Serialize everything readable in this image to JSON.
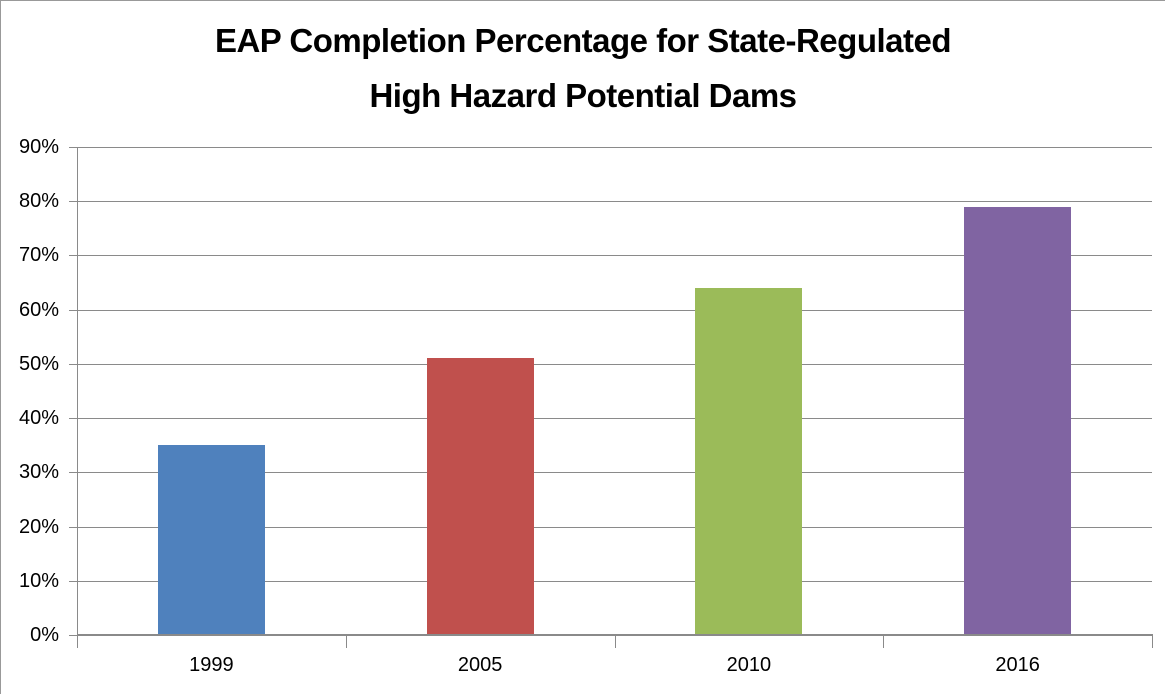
{
  "page": {
    "background": "#FFFFFF",
    "frame_border_color": "#999999"
  },
  "title_lines": [
    "EAP Completion Percentage for State-Regulated",
    "High Hazard Potential Dams"
  ],
  "chart_data": {
    "type": "bar",
    "title": "EAP Completion Percentage for State-Regulated High Hazard Potential Dams",
    "categories": [
      "1999",
      "2005",
      "2010",
      "2016"
    ],
    "values": [
      35,
      51,
      64,
      79
    ],
    "value_unit": "%",
    "bar_colors": [
      "#4F81BD",
      "#C0504D",
      "#9BBB59",
      "#8064A2"
    ],
    "y_axis": {
      "min": 0,
      "max": 90,
      "step": 10,
      "tick_labels": [
        "0%",
        "10%",
        "20%",
        "30%",
        "40%",
        "50%",
        "60%",
        "70%",
        "80%",
        "90%"
      ]
    },
    "x_axis": {
      "tick_labels": [
        "1999",
        "2005",
        "2010",
        "2016"
      ]
    },
    "grid": true,
    "legend": "none",
    "gridline_color": "#8A8A8A",
    "axis_color": "#8A8A8A",
    "text_color": "#000000",
    "xlabel": "",
    "ylabel": ""
  }
}
